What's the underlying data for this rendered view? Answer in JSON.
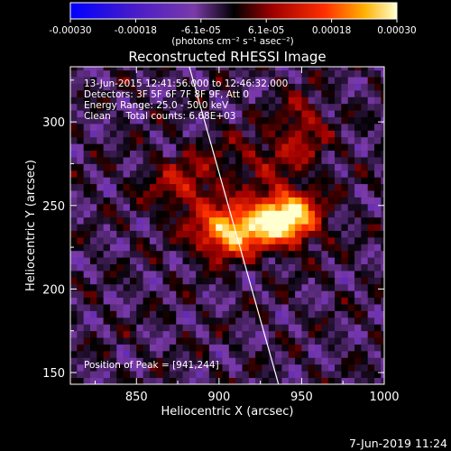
{
  "chart_data": {
    "type": "heatmap",
    "title": "Reconstructed RHESSI Image",
    "xlabel": "Heliocentric X (arcsec)",
    "ylabel": "Heliocentric Y (arcsec)",
    "xlim": [
      810,
      1000
    ],
    "ylim": [
      143,
      333
    ],
    "x_ticks": [
      850,
      900,
      950,
      1000
    ],
    "y_ticks": [
      150,
      200,
      250,
      300
    ],
    "colorbar": {
      "ticks": [
        "-0.00030",
        "-0.00018",
        "-6.1e-05",
        "6.1e-05",
        "0.00018",
        "0.00030"
      ],
      "range": [
        -0.0003,
        0.0003
      ],
      "unit_label": "(photons cm⁻² s⁻¹ asec⁻²)"
    },
    "annotations": [
      "13-Jun-2015 12:41:56.000 to 12:46:32.000",
      "Detectors: 3F 5F 6F 7F 8F 9F, Att 0",
      "Energy Range: 25.0 - 50.0 keV",
      "Clean     Total counts: 6.68E+03"
    ],
    "peak_label": "Position of Peak = [941,244]",
    "peak": [
      941,
      244
    ],
    "limb_line": [
      [
        882,
        333
      ],
      [
        936,
        143
      ]
    ],
    "hot_regions": [
      {
        "x": 905,
        "y": 233,
        "sx": 14,
        "sy": 10,
        "amp": 0.00024
      },
      {
        "x": 941,
        "y": 244,
        "sx": 13,
        "sy": 11,
        "amp": 0.0003
      },
      {
        "x": 925,
        "y": 240,
        "sx": 18,
        "sy": 9,
        "amp": 0.00014
      },
      {
        "x": 880,
        "y": 262,
        "sx": 16,
        "sy": 12,
        "amp": 0.00012
      },
      {
        "x": 950,
        "y": 300,
        "sx": 10,
        "sy": 12,
        "amp": 0.0001
      },
      {
        "x": 930,
        "y": 280,
        "sx": 22,
        "sy": 10,
        "amp": 8e-05
      }
    ]
  },
  "footer": {
    "date": "7-Jun-2019 11:24"
  }
}
